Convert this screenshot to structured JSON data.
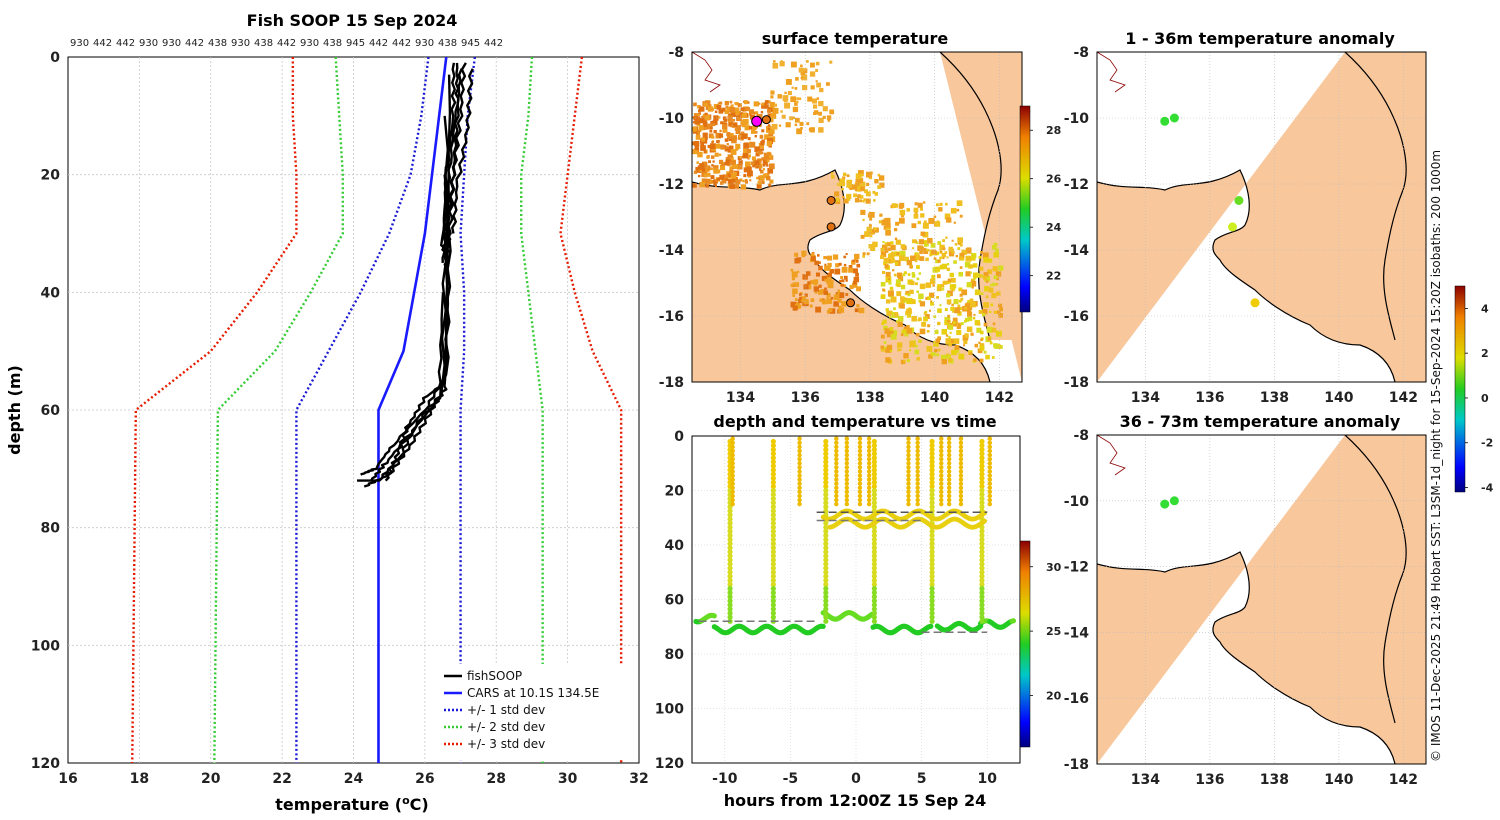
{
  "colors": {
    "land": "#f8c79c",
    "grid": "#c8c8c8",
    "fish": "#000000",
    "cars": "#1a1aff",
    "std1": "#1a1ad6",
    "std2": "#33cc33",
    "std3": "#e61a00",
    "sst_warm": "#f0a020",
    "sst_hot": "#e07010",
    "highlight": "#ff00ff"
  },
  "chart_data": [
    {
      "id": "profile",
      "type": "line",
      "title": "Fish SOOP 15 Sep 2024",
      "xlabel": "temperature (°C)",
      "xlabel_main": "temperature (",
      "xlabel_sup": "o",
      "xlabel_tail": "C)",
      "ylabel": "depth (m)",
      "xlim": [
        16,
        32
      ],
      "ylim": [
        0,
        120
      ],
      "y_inverted": true,
      "xticks": [
        16,
        18,
        20,
        22,
        24,
        26,
        28,
        30,
        32
      ],
      "yticks": [
        0,
        20,
        40,
        60,
        80,
        100,
        120
      ],
      "top_labels": [
        "930",
        "442",
        "442",
        "930",
        "930",
        "442",
        "438",
        "930",
        "438",
        "442",
        "930",
        "438",
        "945",
        "442",
        "442",
        "930",
        "438",
        "945",
        "442"
      ],
      "series": [
        {
          "name": "CARS at 10.1S 134.5E",
          "style": "solid",
          "color_key": "cars",
          "points": [
            [
              26.6,
              0
            ],
            [
              26.4,
              10
            ],
            [
              26.2,
              20
            ],
            [
              26.0,
              30
            ],
            [
              25.7,
              40
            ],
            [
              25.4,
              50
            ],
            [
              24.7,
              60
            ],
            [
              24.7,
              120
            ]
          ]
        },
        {
          "name": "+/- 1 std dev",
          "style": "dotted",
          "color_key": "std1",
          "points": [
            [
              26.1,
              0
            ],
            [
              25.9,
              10
            ],
            [
              25.6,
              20
            ],
            [
              25.0,
              30
            ],
            [
              24.2,
              40
            ],
            [
              23.3,
              50
            ],
            [
              22.4,
              60
            ],
            [
              22.4,
              120
            ]
          ]
        },
        {
          "name": "+/- 1 std dev (upper)",
          "style": "dotted",
          "color_key": "std1",
          "points": [
            [
              27.4,
              0
            ],
            [
              27.2,
              10
            ],
            [
              27.1,
              20
            ],
            [
              27.0,
              30
            ],
            [
              27.1,
              40
            ],
            [
              27.1,
              50
            ],
            [
              27.0,
              60
            ],
            [
              27.0,
              120
            ]
          ]
        },
        {
          "name": "+/- 2 std dev",
          "style": "dotted",
          "color_key": "std2",
          "points": [
            [
              23.5,
              0
            ],
            [
              23.6,
              10
            ],
            [
              23.7,
              20
            ],
            [
              23.7,
              30
            ],
            [
              22.8,
              40
            ],
            [
              21.8,
              50
            ],
            [
              20.2,
              60
            ],
            [
              20.1,
              120
            ]
          ]
        },
        {
          "name": "+/- 2 std dev (upper)",
          "style": "dotted",
          "color_key": "std2",
          "points": [
            [
              29.0,
              0
            ],
            [
              28.9,
              10
            ],
            [
              28.7,
              20
            ],
            [
              28.7,
              30
            ],
            [
              28.9,
              40
            ],
            [
              29.1,
              50
            ],
            [
              29.3,
              60
            ],
            [
              29.3,
              120
            ]
          ]
        },
        {
          "name": "+/- 3 std dev",
          "style": "dotted",
          "color_key": "std3",
          "points": [
            [
              22.3,
              0
            ],
            [
              22.3,
              10
            ],
            [
              22.4,
              20
            ],
            [
              22.4,
              30
            ],
            [
              21.3,
              40
            ],
            [
              20.0,
              50
            ],
            [
              17.9,
              60
            ],
            [
              17.8,
              120
            ]
          ]
        },
        {
          "name": "+/- 3 std dev (upper)",
          "style": "dotted",
          "color_key": "std3",
          "points": [
            [
              30.4,
              0
            ],
            [
              30.2,
              10
            ],
            [
              30.0,
              20
            ],
            [
              29.8,
              30
            ],
            [
              30.2,
              40
            ],
            [
              30.7,
              50
            ],
            [
              31.5,
              60
            ],
            [
              31.5,
              120
            ]
          ]
        }
      ],
      "fish_profiles": [
        [
          [
            26.9,
            1
          ],
          [
            26.9,
            8
          ],
          [
            26.7,
            18
          ],
          [
            26.6,
            28
          ],
          [
            26.5,
            35
          ]
        ],
        [
          [
            27.0,
            2
          ],
          [
            26.9,
            10
          ],
          [
            26.8,
            20
          ],
          [
            26.6,
            30
          ],
          [
            26.6,
            36
          ]
        ],
        [
          [
            27.1,
            1
          ],
          [
            27.0,
            10
          ],
          [
            26.8,
            20
          ],
          [
            26.7,
            30
          ],
          [
            26.6,
            34
          ]
        ],
        [
          [
            27.3,
            2
          ],
          [
            27.2,
            12
          ],
          [
            26.9,
            22
          ],
          [
            26.8,
            30
          ]
        ],
        [
          [
            26.8,
            1
          ],
          [
            26.8,
            10
          ],
          [
            26.6,
            20
          ],
          [
            26.5,
            32
          ],
          [
            26.6,
            35
          ]
        ],
        [
          [
            26.7,
            3
          ],
          [
            26.6,
            55
          ],
          [
            26.0,
            58
          ],
          [
            25.5,
            63
          ],
          [
            25.2,
            68
          ],
          [
            24.9,
            72
          ]
        ],
        [
          [
            26.6,
            10
          ],
          [
            26.6,
            56
          ],
          [
            26.2,
            60
          ],
          [
            25.6,
            66
          ],
          [
            25.0,
            71
          ],
          [
            24.3,
            73
          ]
        ],
        [
          [
            26.6,
            20
          ],
          [
            26.5,
            57
          ],
          [
            25.8,
            62
          ],
          [
            25.3,
            68
          ],
          [
            24.7,
            72
          ],
          [
            24.1,
            72
          ]
        ],
        [
          [
            26.7,
            30
          ],
          [
            26.6,
            54
          ],
          [
            26.0,
            60
          ],
          [
            25.1,
            66
          ],
          [
            24.6,
            70
          ],
          [
            24.2,
            71
          ]
        ],
        [
          [
            26.5,
            40
          ],
          [
            26.4,
            58
          ],
          [
            25.6,
            64
          ],
          [
            24.9,
            69
          ],
          [
            24.5,
            72
          ]
        ]
      ],
      "legend": {
        "position": "bottom-right",
        "entries": [
          "fishSOOP",
          "CARS at 10.1S 134.5E",
          "+/- 1 std dev",
          "+/- 2 std dev",
          "+/- 3 std dev"
        ]
      }
    },
    {
      "id": "map_sst",
      "type": "heatmap",
      "title": "surface temperature",
      "xlim": [
        132.5,
        142.7
      ],
      "ylim": [
        -18,
        -8
      ],
      "xticks": [
        134,
        136,
        138,
        140,
        142
      ],
      "yticks": [
        -8,
        -10,
        -12,
        -14,
        -16,
        -18
      ],
      "colorbar": {
        "min": 20.5,
        "max": 29.0,
        "ticks": [
          22,
          24,
          26,
          28
        ]
      },
      "stations": [
        [
          134.5,
          -10.1
        ],
        [
          134.8,
          -10.05
        ],
        [
          136.8,
          -12.5
        ],
        [
          136.8,
          -13.3
        ],
        [
          137.4,
          -15.6
        ]
      ]
    },
    {
      "id": "map_a1",
      "type": "heatmap",
      "title": "1 - 36m temperature anomaly",
      "xlim": [
        132.5,
        142.7
      ],
      "ylim": [
        -18,
        -8
      ],
      "xticks": [
        134,
        136,
        138,
        140,
        142
      ],
      "yticks": [
        -8,
        -10,
        -12,
        -14,
        -16,
        -18
      ],
      "points": [
        [
          134.6,
          -10.1
        ],
        [
          134.9,
          -10.0
        ],
        [
          136.9,
          -12.5
        ],
        [
          136.7,
          -13.3
        ],
        [
          137.4,
          -15.6
        ]
      ]
    },
    {
      "id": "time_depth",
      "type": "scatter",
      "title": "depth and temperature vs time",
      "xlabel": "hours from 12:00Z 15 Sep 24",
      "xlim": [
        -12.5,
        12.5
      ],
      "ylim": [
        0,
        120
      ],
      "y_inverted": true,
      "xticks": [
        -10,
        -5,
        0,
        5,
        10
      ],
      "yticks": [
        0,
        20,
        40,
        60,
        80,
        100,
        120
      ],
      "colorbar": {
        "min": 16,
        "max": 32,
        "ticks": [
          20,
          25,
          30
        ]
      }
    },
    {
      "id": "map_a2",
      "type": "heatmap",
      "title": "36 - 73m temperature anomaly",
      "xlim": [
        132.5,
        142.7
      ],
      "ylim": [
        -18,
        -8
      ],
      "xticks": [
        134,
        136,
        138,
        140,
        142
      ],
      "yticks": [
        -8,
        -10,
        -12,
        -14,
        -16,
        -18
      ],
      "points": [
        [
          134.6,
          -10.1
        ],
        [
          134.9,
          -10.0
        ]
      ]
    }
  ],
  "anomaly_colorbar": {
    "min": -4.2,
    "max": 5.0,
    "ticks": [
      -4,
      -2,
      0,
      2,
      4
    ]
  },
  "credit": "© IMOS 11-Dec-2025 21:49 Hobart SST: L3SM-1d_night for 15-Sep-2024 15:20Z isobaths: 200  1000m"
}
